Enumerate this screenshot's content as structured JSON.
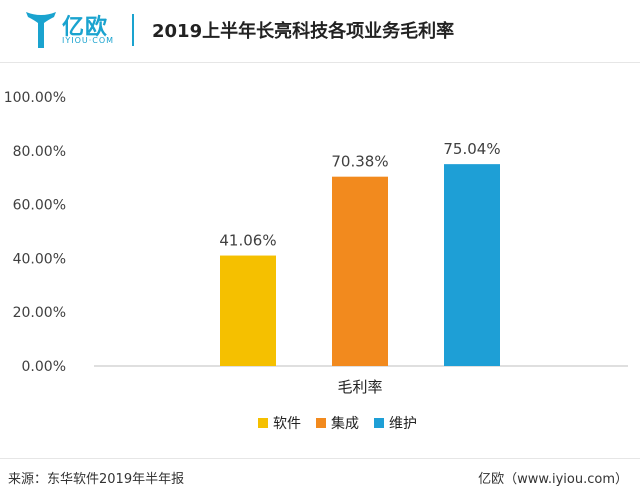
{
  "header": {
    "logo_text": "亿欧",
    "logo_sub": "IYIOU·COM",
    "title": "2019上半年长亮科技各项业务毛利率"
  },
  "footer": {
    "source": "来源：东华软件2019年半年报",
    "watermark": "亿欧（www.iyiou.com）"
  },
  "colors": {
    "brand": "#1aa3cf",
    "series": [
      "#f5c000",
      "#f28a1e",
      "#1e9fd6"
    ]
  },
  "chart_data": {
    "type": "bar",
    "categories": [
      "毛利率"
    ],
    "series": [
      {
        "name": "软件",
        "values": [
          41.06
        ]
      },
      {
        "name": "集成",
        "values": [
          70.38
        ]
      },
      {
        "name": "维护",
        "values": [
          75.04
        ]
      }
    ],
    "value_labels": [
      "41.06%",
      "70.38%",
      "75.04%"
    ],
    "ylim": [
      0,
      100
    ],
    "yticks": [
      0,
      20,
      40,
      60,
      80,
      100
    ],
    "ytick_labels": [
      "0.00%",
      "20.00%",
      "40.00%",
      "60.00%",
      "80.00%",
      "100.00%"
    ],
    "title": "",
    "xlabel": "",
    "ylabel": "",
    "grid": false,
    "legend_position": "bottom"
  }
}
